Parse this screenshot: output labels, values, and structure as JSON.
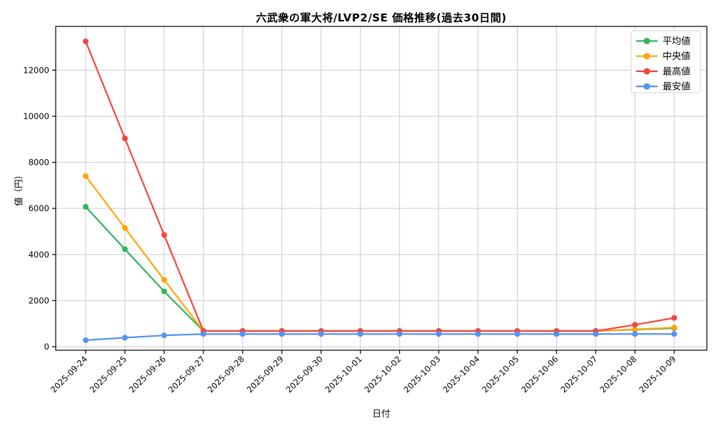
{
  "chart_data": {
    "type": "line",
    "title": "六武衆の軍大将/LVP2/SE 価格推移(過去30日間)",
    "xlabel": "日付",
    "ylabel": "値（円）",
    "categories": [
      "2025-09-24",
      "2025-09-25",
      "2025-09-26",
      "2025-09-27",
      "2025-09-28",
      "2025-09-29",
      "2025-09-30",
      "2025-10-01",
      "2025-10-02",
      "2025-10-03",
      "2025-10-04",
      "2025-10-05",
      "2025-10-06",
      "2025-10-07",
      "2025-10-08",
      "2025-10-09"
    ],
    "series": [
      {
        "key": "average",
        "name": "平均値",
        "color": "#34b45a",
        "values": [
          6070,
          4230,
          2400,
          680,
          680,
          680,
          680,
          680,
          680,
          680,
          680,
          680,
          680,
          680,
          740,
          800
        ]
      },
      {
        "key": "median",
        "name": "中央値",
        "color": "#ffa50a",
        "values": [
          7400,
          5150,
          2900,
          680,
          680,
          680,
          680,
          680,
          680,
          680,
          680,
          680,
          680,
          680,
          750,
          830
        ]
      },
      {
        "key": "max",
        "name": "最高値",
        "color": "#f5463c",
        "values": [
          13250,
          9040,
          4850,
          680,
          680,
          680,
          680,
          680,
          680,
          680,
          680,
          680,
          680,
          680,
          950,
          1250
        ]
      },
      {
        "key": "min",
        "name": "最安値",
        "color": "#5591f5",
        "values": [
          280,
          390,
          490,
          550,
          550,
          550,
          550,
          550,
          550,
          550,
          550,
          550,
          550,
          550,
          550,
          550
        ]
      }
    ],
    "yticks": [
      0,
      2000,
      4000,
      6000,
      8000,
      10000,
      12000
    ],
    "ylim": [
      -155,
      13900
    ],
    "grid": true,
    "grid_color": "#cccccc",
    "axis_color": "#000000",
    "background": "#ffffff",
    "legend_position": "upper right",
    "x_tick_rotation_deg": 45
  }
}
